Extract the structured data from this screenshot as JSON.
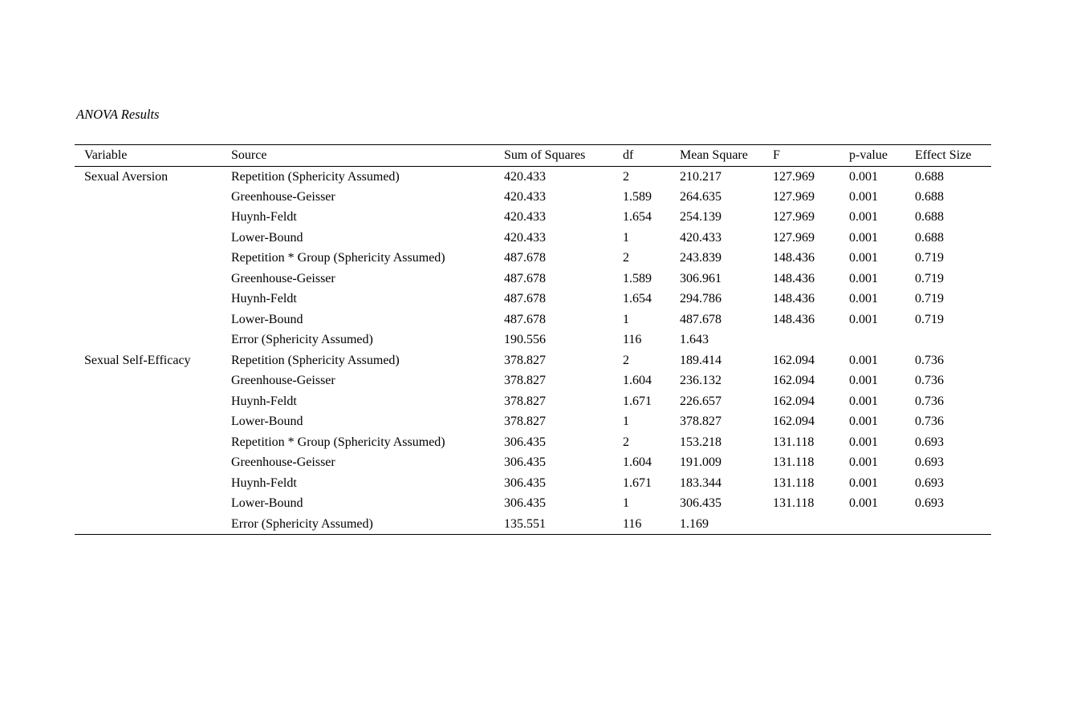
{
  "page": {
    "title": "ANOVA Results"
  },
  "table": {
    "columns": [
      "Variable",
      "Source",
      "Sum of Squares",
      "df",
      "Mean Square",
      "F",
      "p-value",
      "Effect Size"
    ],
    "rows": [
      [
        "Sexual Aversion",
        "Repetition (Sphericity Assumed)",
        "420.433",
        "2",
        "210.217",
        "127.969",
        "0.001",
        "0.688"
      ],
      [
        "",
        "Greenhouse-Geisser",
        "420.433",
        "1.589",
        "264.635",
        "127.969",
        "0.001",
        "0.688"
      ],
      [
        "",
        "Huynh-Feldt",
        "420.433",
        "1.654",
        "254.139",
        "127.969",
        "0.001",
        "0.688"
      ],
      [
        "",
        "Lower-Bound",
        "420.433",
        "1",
        "420.433",
        "127.969",
        "0.001",
        "0.688"
      ],
      [
        "",
        "Repetition * Group (Sphericity Assumed)",
        "487.678",
        "2",
        "243.839",
        "148.436",
        "0.001",
        "0.719"
      ],
      [
        "",
        "Greenhouse-Geisser",
        "487.678",
        "1.589",
        "306.961",
        "148.436",
        "0.001",
        "0.719"
      ],
      [
        "",
        "Huynh-Feldt",
        "487.678",
        "1.654",
        "294.786",
        "148.436",
        "0.001",
        "0.719"
      ],
      [
        "",
        "Lower-Bound",
        "487.678",
        "1",
        "487.678",
        "148.436",
        "0.001",
        "0.719"
      ],
      [
        "",
        "Error (Sphericity Assumed)",
        "190.556",
        "116",
        "1.643",
        "",
        "",
        ""
      ],
      [
        "Sexual Self-Efficacy",
        "Repetition (Sphericity Assumed)",
        "378.827",
        "2",
        "189.414",
        "162.094",
        "0.001",
        "0.736"
      ],
      [
        "",
        "Greenhouse-Geisser",
        "378.827",
        "1.604",
        "236.132",
        "162.094",
        "0.001",
        "0.736"
      ],
      [
        "",
        "Huynh-Feldt",
        "378.827",
        "1.671",
        "226.657",
        "162.094",
        "0.001",
        "0.736"
      ],
      [
        "",
        "Lower-Bound",
        "378.827",
        "1",
        "378.827",
        "162.094",
        "0.001",
        "0.736"
      ],
      [
        "",
        "Repetition * Group (Sphericity Assumed)",
        "306.435",
        "2",
        "153.218",
        "131.118",
        "0.001",
        "0.693"
      ],
      [
        "",
        "Greenhouse-Geisser",
        "306.435",
        "1.604",
        "191.009",
        "131.118",
        "0.001",
        "0.693"
      ],
      [
        "",
        "Huynh-Feldt",
        "306.435",
        "1.671",
        "183.344",
        "131.118",
        "0.001",
        "0.693"
      ],
      [
        "",
        "Lower-Bound",
        "306.435",
        "1",
        "306.435",
        "131.118",
        "0.001",
        "0.693"
      ],
      [
        "",
        "Error (Sphericity Assumed)",
        "135.551",
        "116",
        "1.169",
        "",
        "",
        ""
      ]
    ]
  }
}
